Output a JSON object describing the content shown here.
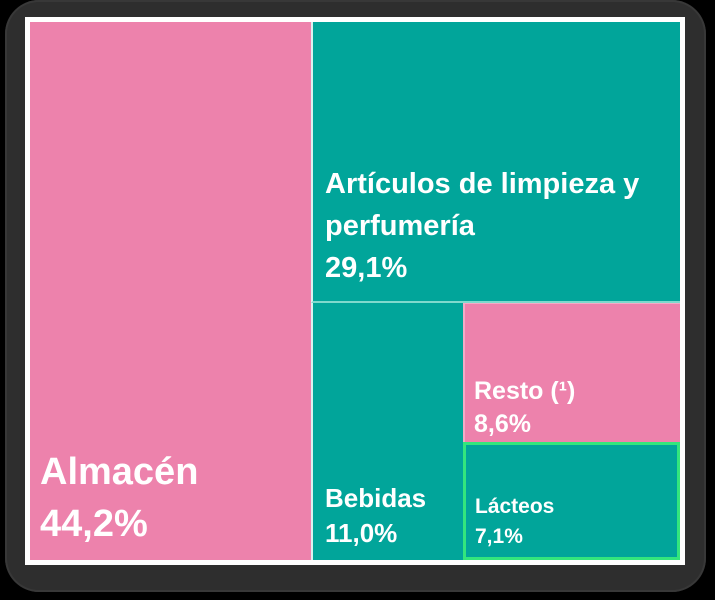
{
  "chart_data": {
    "type": "treemap",
    "title": "",
    "unit": "%",
    "decimal_style": "comma",
    "legend": "none",
    "palette": {
      "pink": "#ed82ac",
      "teal": "#01a59a",
      "highlight_border": "#33e67d",
      "frame": "#ffffff",
      "card": "#2e2e2e",
      "background": "#000000",
      "text": "#ffffff"
    },
    "items": [
      {
        "label": "Almacén",
        "value": 44.2,
        "pct_label": "44,2%",
        "color": "#ed82ac",
        "highlighted": false
      },
      {
        "label": "Artículos de limpieza y perfumería",
        "value": 29.1,
        "pct_label": "29,1%",
        "color": "#01a59a",
        "highlighted": false
      },
      {
        "label": "Bebidas",
        "value": 11.0,
        "pct_label": "11,0%",
        "color": "#01a59a",
        "highlighted": false
      },
      {
        "label": "Resto (¹)",
        "value": 8.6,
        "pct_label": "8,6%",
        "color": "#ed82ac",
        "highlighted": false
      },
      {
        "label": "Lácteos",
        "value": 7.1,
        "pct_label": "7,1%",
        "color": "#01a59a",
        "highlighted": true
      }
    ]
  }
}
